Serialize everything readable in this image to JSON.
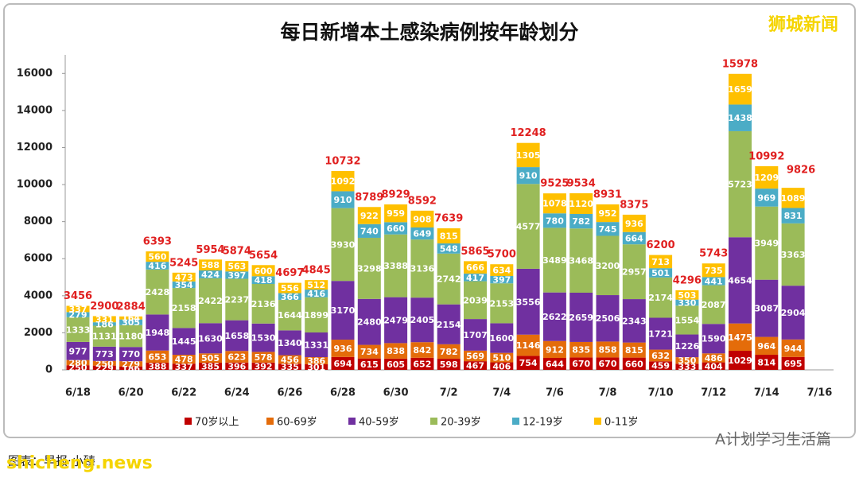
{
  "chart_data": {
    "type": "stacked-bar",
    "title": "每日新增本土感染病例按年龄划分",
    "watermark": "狮城新闻",
    "source": "图表：早报·小臻",
    "site": "shicheng.news",
    "account": "A计划学习生活篇",
    "categories": [
      "6/18",
      null,
      "6/20",
      null,
      "6/22",
      null,
      "6/24",
      null,
      "6/26",
      null,
      "6/28",
      null,
      "6/30",
      null,
      "7/2",
      null,
      "7/4",
      null,
      "7/6",
      null,
      "7/8",
      null,
      "7/10",
      null,
      "7/12",
      null,
      "7/14",
      null,
      "7/16"
    ],
    "series": [
      {
        "name": "70岁以上",
        "color": "#c00000",
        "values": [
          250,
          229,
          186,
          388,
          337,
          385,
          396,
          392,
          335,
          301,
          694,
          615,
          605,
          652,
          598,
          467,
          406,
          754,
          644,
          670,
          670,
          660,
          459,
          333,
          404,
          1029,
          814,
          695,
          null
        ]
      },
      {
        "name": "60-69岁",
        "color": "#e46c0a",
        "values": [
          280,
          250,
          279,
          653,
          478,
          505,
          623,
          578,
          456,
          386,
          936,
          734,
          838,
          842,
          782,
          569,
          510,
          1146,
          912,
          835,
          858,
          815,
          632,
          350,
          486,
          1475,
          964,
          944,
          null
        ]
      },
      {
        "name": "40-59岁",
        "color": "#7030a0",
        "values": [
          977,
          773,
          770,
          1948,
          1445,
          1630,
          1658,
          1530,
          1340,
          1331,
          3170,
          2480,
          2479,
          2405,
          2154,
          1707,
          1600,
          3556,
          2622,
          2659,
          2506,
          2343,
          1721,
          1226,
          1590,
          4654,
          3087,
          2904,
          null
        ]
      },
      {
        "name": "20-39岁",
        "color": "#9bbb59",
        "values": [
          1333,
          1131,
          1180,
          2428,
          2158,
          2422,
          2237,
          2136,
          1644,
          1899,
          3930,
          3298,
          3388,
          3136,
          2742,
          2039,
          2153,
          4577,
          3489,
          3468,
          3200,
          2957,
          2174,
          1554,
          2087,
          5723,
          3949,
          3363,
          null
        ]
      },
      {
        "name": "12-19岁",
        "color": "#4bacc6",
        "values": [
          279,
          186,
          305,
          416,
          354,
          424,
          397,
          418,
          366,
          416,
          910,
          740,
          660,
          649,
          548,
          417,
          397,
          910,
          780,
          782,
          745,
          664,
          501,
          330,
          441,
          1438,
          969,
          831,
          null
        ]
      },
      {
        "name": "0-11岁",
        "color": "#ffc000",
        "values": [
          337,
          331,
          164,
          560,
          473,
          588,
          563,
          600,
          556,
          512,
          1092,
          922,
          959,
          908,
          815,
          666,
          634,
          1305,
          1078,
          1120,
          952,
          936,
          713,
          503,
          735,
          1659,
          1209,
          1089,
          null
        ]
      }
    ],
    "totals": [
      3456,
      2900,
      2884,
      6393,
      5245,
      5954,
      5874,
      5654,
      4697,
      4845,
      10732,
      8789,
      8929,
      8592,
      7639,
      5865,
      5700,
      12248,
      9525,
      9534,
      8931,
      8375,
      6200,
      4296,
      5743,
      15978,
      10992,
      9826,
      null
    ],
    "ylim": [
      0,
      17000
    ],
    "yticks": [
      0,
      2000,
      4000,
      6000,
      8000,
      10000,
      12000,
      14000,
      16000
    ]
  }
}
